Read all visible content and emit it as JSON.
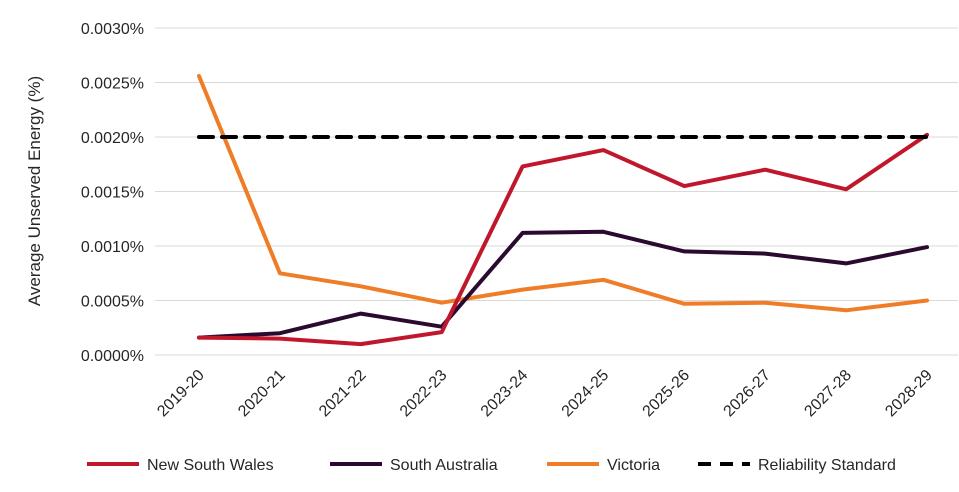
{
  "chart_data": {
    "type": "line",
    "title": "",
    "xlabel": "",
    "ylabel": "Average Unserved Energy (%)",
    "categories": [
      "2019-20",
      "2020-21",
      "2021-22",
      "2022-23",
      "2023-24",
      "2024-25",
      "2025-26",
      "2026-27",
      "2027-28",
      "2028-29"
    ],
    "ylim": [
      0,
      0.003
    ],
    "yticks": [
      "0.0000%",
      "0.0005%",
      "0.0010%",
      "0.0015%",
      "0.0020%",
      "0.0025%",
      "0.0030%"
    ],
    "ytick_values": [
      0,
      0.0005,
      0.001,
      0.0015,
      0.002,
      0.0025,
      0.003
    ],
    "grid": "horizontal",
    "legend_position": "bottom",
    "series": [
      {
        "name": "New South Wales",
        "color": "#c0172c",
        "style": "solid",
        "values": [
          0.00016,
          0.00015,
          0.0001,
          0.00021,
          0.00173,
          0.00188,
          0.00155,
          0.0017,
          0.00152,
          0.00202
        ]
      },
      {
        "name": "South Australia",
        "color": "#2b0a2f",
        "style": "solid",
        "values": [
          0.00016,
          0.0002,
          0.00038,
          0.00026,
          0.00112,
          0.00113,
          0.00095,
          0.00093,
          0.00084,
          0.00099
        ]
      },
      {
        "name": "Victoria",
        "color": "#ef7d27",
        "style": "solid",
        "values": [
          0.00256,
          0.00075,
          0.00063,
          0.00048,
          0.0006,
          0.00069,
          0.00047,
          0.00048,
          0.00041,
          0.0005
        ]
      },
      {
        "name": "Reliability Standard",
        "color": "#000000",
        "style": "dashed",
        "values": [
          0.002,
          0.002,
          0.002,
          0.002,
          0.002,
          0.002,
          0.002,
          0.002,
          0.002,
          0.002
        ]
      }
    ]
  }
}
